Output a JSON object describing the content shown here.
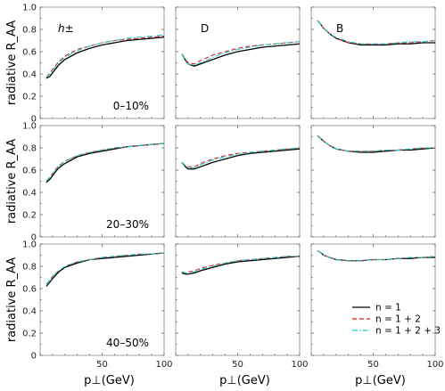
{
  "chart_data": {
    "type": "line",
    "layout": "3x3 grid",
    "ylabel": "radiative R_AA",
    "xlabel": "p⊥(GeV)",
    "xlim": [
      0,
      100
    ],
    "ylim": [
      0,
      1.0
    ],
    "xticks": [
      0,
      50,
      100
    ],
    "yticks": [
      0,
      0.2,
      0.4,
      0.6,
      0.8,
      1.0
    ],
    "xtick_labels": [
      "0",
      "50",
      "100"
    ],
    "ytick_labels": [
      "0",
      "0.2",
      "0.4",
      "0.6",
      "0.8",
      "1.0"
    ],
    "particles": [
      "h±",
      "D",
      "B"
    ],
    "centralities": [
      "0–10%",
      "20–30%",
      "40–50%"
    ],
    "legend": {
      "position": "bottom-right panel",
      "entries": [
        "n = 1",
        "n = 1 + 2",
        "n = 1 + 2 + 3"
      ]
    },
    "series_style": [
      {
        "name": "n = 1",
        "color": "#000000",
        "dash": "solid"
      },
      {
        "name": "n = 1 + 2",
        "color": "#dd2222",
        "dash": "dashed"
      },
      {
        "name": "n = 1 + 2 + 3",
        "color": "#22cccc",
        "dash": "dashdot"
      }
    ],
    "x": [
      5,
      8,
      10,
      15,
      20,
      30,
      40,
      50,
      60,
      70,
      80,
      90,
      100
    ],
    "panels": [
      {
        "row": 0,
        "col": 0,
        "particle": "h±",
        "centrality": "0–10%",
        "series": [
          {
            "name": "n = 1",
            "values": [
              0.36,
              0.38,
              0.41,
              0.48,
              0.53,
              0.59,
              0.63,
              0.66,
              0.68,
              0.7,
              0.71,
              0.72,
              0.73
            ]
          },
          {
            "name": "n = 1 + 2",
            "values": [
              0.37,
              0.41,
              0.44,
              0.51,
              0.56,
              0.62,
              0.65,
              0.68,
              0.7,
              0.71,
              0.72,
              0.73,
              0.74
            ]
          },
          {
            "name": "n = 1 + 2 + 3",
            "values": [
              0.37,
              0.4,
              0.43,
              0.5,
              0.55,
              0.61,
              0.65,
              0.68,
              0.7,
              0.72,
              0.73,
              0.74,
              0.75
            ]
          }
        ]
      },
      {
        "row": 0,
        "col": 1,
        "particle": "D",
        "centrality": "",
        "series": [
          {
            "name": "n = 1",
            "values": [
              0.58,
              0.52,
              0.49,
              0.47,
              0.49,
              0.53,
              0.57,
              0.6,
              0.62,
              0.64,
              0.65,
              0.66,
              0.67
            ]
          },
          {
            "name": "n = 1 + 2",
            "values": [
              0.58,
              0.53,
              0.5,
              0.49,
              0.52,
              0.57,
              0.6,
              0.63,
              0.65,
              0.66,
              0.67,
              0.68,
              0.69
            ]
          },
          {
            "name": "n = 1 + 2 + 3",
            "values": [
              0.58,
              0.52,
              0.49,
              0.48,
              0.5,
              0.55,
              0.59,
              0.62,
              0.64,
              0.66,
              0.67,
              0.68,
              0.69
            ]
          }
        ]
      },
      {
        "row": 0,
        "col": 2,
        "particle": "B",
        "centrality": "",
        "series": [
          {
            "name": "n = 1",
            "values": [
              0.88,
              0.84,
              0.81,
              0.76,
              0.72,
              0.68,
              0.66,
              0.66,
              0.66,
              0.67,
              0.67,
              0.68,
              0.68
            ]
          },
          {
            "name": "n = 1 + 2",
            "values": [
              0.88,
              0.84,
              0.81,
              0.76,
              0.72,
              0.68,
              0.67,
              0.67,
              0.67,
              0.68,
              0.68,
              0.69,
              0.7
            ]
          },
          {
            "name": "n = 1 + 2 + 3",
            "values": [
              0.88,
              0.84,
              0.81,
              0.76,
              0.73,
              0.69,
              0.67,
              0.67,
              0.67,
              0.68,
              0.69,
              0.69,
              0.7
            ]
          }
        ]
      },
      {
        "row": 1,
        "col": 0,
        "particle": "h±",
        "centrality": "20–30%",
        "series": [
          {
            "name": "n = 1",
            "values": [
              0.49,
              0.52,
              0.55,
              0.62,
              0.66,
              0.72,
              0.75,
              0.77,
              0.79,
              0.81,
              0.82,
              0.83,
              0.84
            ]
          },
          {
            "name": "n = 1 + 2",
            "values": [
              0.5,
              0.54,
              0.57,
              0.64,
              0.68,
              0.73,
              0.76,
              0.78,
              0.8,
              0.81,
              0.82,
              0.83,
              0.84
            ]
          },
          {
            "name": "n = 1 + 2 + 3",
            "values": [
              0.5,
              0.54,
              0.57,
              0.63,
              0.68,
              0.73,
              0.76,
              0.78,
              0.8,
              0.81,
              0.82,
              0.83,
              0.84
            ]
          }
        ]
      },
      {
        "row": 1,
        "col": 1,
        "particle": "D",
        "centrality": "",
        "series": [
          {
            "name": "n = 1",
            "values": [
              0.67,
              0.63,
              0.61,
              0.61,
              0.63,
              0.67,
              0.7,
              0.73,
              0.75,
              0.76,
              0.77,
              0.78,
              0.79
            ]
          },
          {
            "name": "n = 1 + 2",
            "values": [
              0.67,
              0.64,
              0.63,
              0.63,
              0.66,
              0.7,
              0.73,
              0.75,
              0.76,
              0.77,
              0.78,
              0.79,
              0.8
            ]
          },
          {
            "name": "n = 1 + 2 + 3",
            "values": [
              0.67,
              0.64,
              0.62,
              0.62,
              0.65,
              0.69,
              0.72,
              0.74,
              0.76,
              0.77,
              0.78,
              0.79,
              0.8
            ]
          }
        ]
      },
      {
        "row": 1,
        "col": 2,
        "particle": "B",
        "centrality": "",
        "series": [
          {
            "name": "n = 1",
            "values": [
              0.91,
              0.88,
              0.86,
              0.82,
              0.79,
              0.77,
              0.76,
              0.76,
              0.77,
              0.78,
              0.78,
              0.79,
              0.8
            ]
          },
          {
            "name": "n = 1 + 2",
            "values": [
              0.91,
              0.88,
              0.86,
              0.82,
              0.79,
              0.77,
              0.77,
              0.77,
              0.78,
              0.78,
              0.79,
              0.8,
              0.8
            ]
          },
          {
            "name": "n = 1 + 2 + 3",
            "values": [
              0.91,
              0.88,
              0.86,
              0.82,
              0.79,
              0.77,
              0.77,
              0.77,
              0.78,
              0.78,
              0.79,
              0.8,
              0.8
            ]
          }
        ]
      },
      {
        "row": 2,
        "col": 0,
        "particle": "h±",
        "centrality": "40–50%",
        "series": [
          {
            "name": "n = 1",
            "values": [
              0.62,
              0.66,
              0.69,
              0.75,
              0.79,
              0.83,
              0.86,
              0.87,
              0.88,
              0.89,
              0.9,
              0.91,
              0.92
            ]
          },
          {
            "name": "n = 1 + 2",
            "values": [
              0.64,
              0.68,
              0.71,
              0.76,
              0.8,
              0.84,
              0.86,
              0.88,
              0.89,
              0.9,
              0.91,
              0.91,
              0.92
            ]
          },
          {
            "name": "n = 1 + 2 + 3",
            "values": [
              0.64,
              0.68,
              0.71,
              0.76,
              0.8,
              0.84,
              0.86,
              0.88,
              0.89,
              0.9,
              0.91,
              0.91,
              0.92
            ]
          }
        ]
      },
      {
        "row": 2,
        "col": 1,
        "particle": "D",
        "centrality": "",
        "series": [
          {
            "name": "n = 1",
            "values": [
              0.74,
              0.73,
              0.73,
              0.74,
              0.76,
              0.79,
              0.82,
              0.84,
              0.85,
              0.86,
              0.87,
              0.88,
              0.89
            ]
          },
          {
            "name": "n = 1 + 2",
            "values": [
              0.75,
              0.74,
              0.75,
              0.76,
              0.78,
              0.81,
              0.83,
              0.85,
              0.86,
              0.87,
              0.88,
              0.89,
              0.89
            ]
          },
          {
            "name": "n = 1 + 2 + 3",
            "values": [
              0.75,
              0.74,
              0.74,
              0.75,
              0.77,
              0.8,
              0.83,
              0.85,
              0.86,
              0.87,
              0.88,
              0.89,
              0.89
            ]
          }
        ]
      },
      {
        "row": 2,
        "col": 2,
        "particle": "B",
        "centrality": "",
        "series": [
          {
            "name": "n = 1",
            "values": [
              0.94,
              0.92,
              0.9,
              0.88,
              0.86,
              0.85,
              0.85,
              0.86,
              0.86,
              0.87,
              0.87,
              0.88,
              0.88
            ]
          },
          {
            "name": "n = 1 + 2",
            "values": [
              0.94,
              0.92,
              0.9,
              0.88,
              0.86,
              0.85,
              0.85,
              0.86,
              0.86,
              0.87,
              0.88,
              0.88,
              0.89
            ]
          },
          {
            "name": "n = 1 + 2 + 3",
            "values": [
              0.94,
              0.92,
              0.9,
              0.88,
              0.86,
              0.85,
              0.85,
              0.86,
              0.86,
              0.87,
              0.88,
              0.88,
              0.89
            ]
          }
        ]
      }
    ]
  }
}
